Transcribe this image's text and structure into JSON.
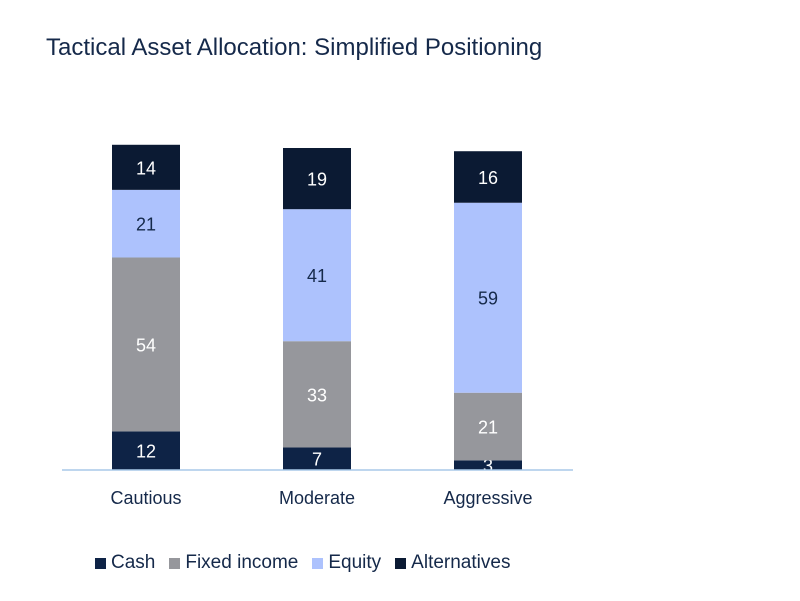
{
  "chart_data": {
    "type": "bar",
    "stacked": true,
    "title": "Tactical Asset Allocation: Simplified Positioning",
    "categories": [
      "Cautious",
      "Moderate",
      "Aggressive"
    ],
    "series": [
      {
        "name": "Cash",
        "values": [
          12,
          7,
          3
        ],
        "color": "#0e2346",
        "label_color": "#ffffff"
      },
      {
        "name": "Fixed income",
        "values": [
          54,
          33,
          21
        ],
        "color": "#96979c",
        "label_color": "#ffffff"
      },
      {
        "name": "Equity",
        "values": [
          21,
          41,
          59
        ],
        "color": "#adc2fd",
        "label_color": "#15294a"
      },
      {
        "name": "Alternatives",
        "values": [
          14,
          19,
          16
        ],
        "color": "#0b1a33",
        "label_color": "#ffffff"
      }
    ],
    "ylim": [
      0,
      100
    ],
    "grid": false,
    "legend_position": "bottom-left",
    "axis_color": "#a9c9e8"
  }
}
